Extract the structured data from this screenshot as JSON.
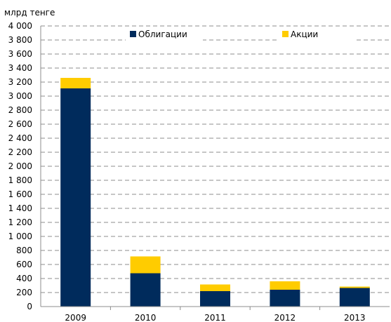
{
  "chart_data": {
    "type": "bar",
    "stacked": true,
    "unit_label": "млрд тенге",
    "categories": [
      "2009",
      "2010",
      "2011",
      "2012",
      "2013"
    ],
    "series": [
      {
        "name": "Облигации",
        "color": "#002B5C",
        "values": [
          3110,
          475,
          220,
          240,
          265
        ]
      },
      {
        "name": "Акции",
        "color": "#FFCC00",
        "values": [
          150,
          240,
          95,
          120,
          20
        ]
      }
    ],
    "ylim": [
      0,
      4000
    ],
    "ytick_step": 200,
    "ytick_labels": [
      "0",
      "200",
      "400",
      "600",
      "800",
      "1 000",
      "1 200",
      "1 400",
      "1 600",
      "1 800",
      "2 000",
      "2 200",
      "2 400",
      "2 600",
      "2 800",
      "3 000",
      "3 200",
      "3 400",
      "3 600",
      "3 800",
      "4 000"
    ],
    "grid": true,
    "legend_position": "top"
  }
}
